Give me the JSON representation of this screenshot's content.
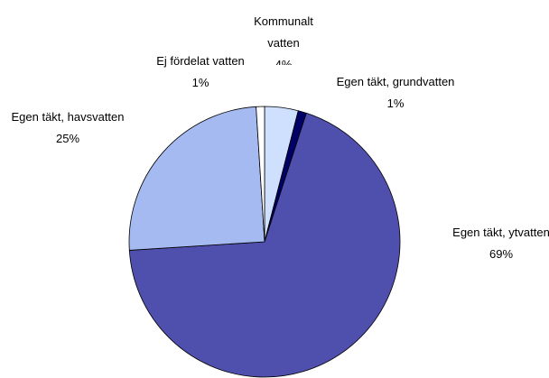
{
  "chart_data": {
    "type": "pie",
    "categories": [
      "Kommunalt vatten",
      "Egen täkt, grundvatten",
      "Egen täkt, ytvatten",
      "Egen täkt, havsvatten",
      "Ej fördelat vatten"
    ],
    "values": [
      4,
      1,
      69,
      25,
      1
    ],
    "value_labels": [
      "4%",
      "1%",
      "69%",
      "25%",
      "1%"
    ],
    "colors": [
      "#cfe0ff",
      "#000066",
      "#4f4fae",
      "#a6baf2",
      "#ffffff"
    ]
  }
}
